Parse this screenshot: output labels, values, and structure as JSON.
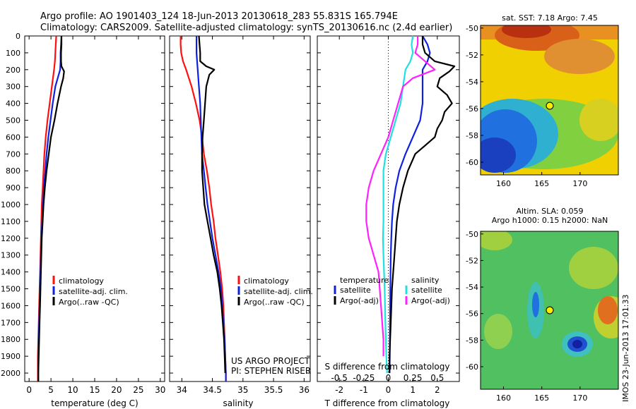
{
  "header": {
    "line1": "Argo profile: AO 1901403_124 18-Jun-2013 20130618_283 55.831S 165.794E",
    "line2": "Climatology: CARS2009. Satellite-adjusted climatology: synTS_20130616.nc (2.4d earlier)"
  },
  "colors": {
    "climatology": "#ff1010",
    "satellite": "#1020e0",
    "argo": "#000000",
    "sal_satellite": "#20e0e0",
    "sal_argo": "#ff20ff"
  },
  "chart_data": [
    {
      "type": "line",
      "xlabel": "temperature (deg C)",
      "ylabel": "",
      "xlim": [
        -1,
        31
      ],
      "ylim": [
        2050,
        0
      ],
      "xticks": [
        0,
        5,
        10,
        15,
        20,
        25,
        30
      ],
      "yticks": [
        0,
        100,
        200,
        300,
        400,
        500,
        600,
        700,
        800,
        900,
        1000,
        1100,
        1200,
        1300,
        1400,
        1500,
        1600,
        1700,
        1800,
        1900,
        2000
      ],
      "legend": [
        "climatology",
        "satellite-adj. clim.",
        "Argo(..raw -QC)"
      ],
      "legend_position": "lower-right",
      "series": [
        {
          "name": "climatology",
          "color_key": "climatology",
          "depth": [
            0,
            50,
            100,
            150,
            200,
            300,
            400,
            500,
            600,
            700,
            800,
            900,
            1000,
            1100,
            1200,
            1300,
            1400,
            1500,
            1600,
            1700,
            1800,
            1900,
            2000,
            2050
          ],
          "values": [
            6.2,
            6.1,
            6.0,
            5.9,
            5.7,
            5.2,
            4.7,
            4.2,
            3.8,
            3.5,
            3.3,
            3.1,
            2.9,
            2.8,
            2.7,
            2.6,
            2.5,
            2.4,
            2.3,
            2.2,
            2.1,
            2.0,
            2.0,
            2.0
          ]
        },
        {
          "name": "satellite-adj. clim.",
          "color_key": "satellite",
          "depth": [
            0,
            50,
            100,
            150,
            200,
            300,
            400,
            500,
            600,
            700,
            800,
            900,
            1000,
            1100,
            1200,
            1300,
            1400,
            1500,
            1600,
            1700,
            1800,
            1900,
            2000,
            2050
          ],
          "values": [
            7.4,
            7.3,
            7.2,
            7.2,
            7.1,
            6.0,
            5.4,
            4.9,
            4.4,
            4.0,
            3.7,
            3.4,
            3.2,
            3.0,
            2.8,
            2.7,
            2.6,
            2.5,
            2.4,
            2.3,
            2.2,
            2.1,
            2.1,
            2.1
          ]
        },
        {
          "name": "Argo(..raw -QC)",
          "color_key": "argo",
          "depth": [
            0,
            50,
            100,
            150,
            180,
            210,
            250,
            300,
            400,
            500,
            600,
            700,
            800,
            900,
            1000,
            1100,
            1200,
            1300,
            1400,
            1500,
            1600,
            1700,
            1800,
            1900,
            2000,
            2050
          ],
          "values": [
            7.4,
            7.4,
            7.3,
            7.3,
            7.4,
            8.0,
            7.8,
            7.3,
            6.5,
            5.8,
            5.0,
            4.5,
            4.0,
            3.6,
            3.3,
            3.1,
            2.9,
            2.8,
            2.7,
            2.6,
            2.5,
            2.4,
            2.3,
            2.2,
            2.1,
            2.1
          ]
        }
      ]
    },
    {
      "type": "line",
      "xlabel": "salinity",
      "ylabel": "",
      "xlim": [
        33.8,
        36.1
      ],
      "ylim": [
        2050,
        0
      ],
      "xticks": [
        34,
        34.5,
        35,
        35.5,
        36
      ],
      "legend": [
        "climatology",
        "satellite-adj. clim.",
        "Argo(..raw -QC)"
      ],
      "legend_position": "lower-right",
      "annotations": [
        "US ARGO PROJECT",
        "PI: STEPHEN RISER"
      ],
      "series": [
        {
          "name": "climatology",
          "color_key": "climatology",
          "depth": [
            0,
            50,
            100,
            150,
            200,
            300,
            400,
            500,
            600,
            700,
            800,
            900,
            1000,
            1100,
            1200,
            1300,
            1400,
            1500,
            1600,
            1700,
            1800,
            1900,
            2000,
            2050
          ],
          "values": [
            33.98,
            33.98,
            33.99,
            34.02,
            34.07,
            34.16,
            34.23,
            34.29,
            34.33,
            34.36,
            34.41,
            34.45,
            34.48,
            34.52,
            34.55,
            34.59,
            34.63,
            34.66,
            34.68,
            34.69,
            34.7,
            34.71,
            34.72,
            34.72
          ]
        },
        {
          "name": "satellite-adj. clim.",
          "color_key": "satellite",
          "depth": [
            0,
            50,
            100,
            150,
            200,
            300,
            400,
            500,
            600,
            700,
            800,
            900,
            1000,
            1100,
            1200,
            1300,
            1400,
            1500,
            1600,
            1700,
            1800,
            1900,
            2000,
            2050
          ],
          "values": [
            34.24,
            34.24,
            34.24,
            34.25,
            34.26,
            34.28,
            34.3,
            34.31,
            34.32,
            34.33,
            34.36,
            34.39,
            34.42,
            34.46,
            34.5,
            34.55,
            34.6,
            34.64,
            34.66,
            34.68,
            34.7,
            34.71,
            34.72,
            34.72
          ]
        },
        {
          "name": "Argo(..raw -QC)",
          "color_key": "argo",
          "depth": [
            0,
            50,
            100,
            150,
            180,
            200,
            230,
            300,
            400,
            500,
            600,
            700,
            800,
            900,
            1000,
            1100,
            1200,
            1300,
            1400,
            1500,
            1600,
            1700,
            1800,
            1900,
            2000
          ],
          "values": [
            34.28,
            34.29,
            34.3,
            34.3,
            34.4,
            34.53,
            34.45,
            34.4,
            34.38,
            34.36,
            34.34,
            34.33,
            34.33,
            34.35,
            34.37,
            34.42,
            34.47,
            34.52,
            34.58,
            34.62,
            34.65,
            34.67,
            34.69,
            34.7,
            34.71
          ]
        }
      ]
    },
    {
      "type": "line",
      "xlabel": "T difference from climatology",
      "x2label": "S difference from climatology",
      "ylabel": "",
      "xlim": [
        -2.9,
        2.9
      ],
      "ylim": [
        2050,
        0
      ],
      "xticks": [
        -2,
        -1,
        0,
        1,
        2
      ],
      "x2ticks": [
        "-0.5",
        "-0.25",
        "0",
        "0.25",
        "0.5"
      ],
      "x2ticks_pos": [
        -2,
        -1,
        0,
        1,
        2
      ],
      "legend_groups": [
        {
          "title": "temperature",
          "items": [
            "satellite",
            "Argo(-adj)"
          ]
        },
        {
          "title": "salinity",
          "items": [
            "satellite",
            "Argo(-adj)"
          ]
        }
      ],
      "series": [
        {
          "name": "satellite",
          "color_key": "satellite",
          "depth": [
            0,
            50,
            100,
            150,
            200,
            300,
            400,
            500,
            600,
            700,
            800,
            900,
            1000,
            1100,
            1200,
            1300,
            1500,
            1700,
            1900,
            2000
          ],
          "values": [
            1.4,
            1.6,
            1.7,
            1.6,
            1.4,
            1.4,
            1.4,
            1.3,
            1.0,
            0.7,
            0.45,
            0.3,
            0.2,
            0.15,
            0.12,
            0.1,
            0.08,
            0.07,
            0.06,
            0.05
          ]
        },
        {
          "name": "Argo(-adj)",
          "color_key": "argo",
          "depth": [
            0,
            50,
            100,
            150,
            180,
            210,
            250,
            300,
            350,
            400,
            450,
            500,
            550,
            600,
            650,
            700,
            800,
            900,
            1000,
            1100,
            1200,
            1300,
            1500,
            1700,
            1900,
            2000
          ],
          "values": [
            1.4,
            1.4,
            1.5,
            1.9,
            2.7,
            2.5,
            2.1,
            2.0,
            2.4,
            2.6,
            2.3,
            2.2,
            2.0,
            1.9,
            1.5,
            1.1,
            0.8,
            0.6,
            0.45,
            0.35,
            0.3,
            0.25,
            0.15,
            0.1,
            0.05,
            0.05
          ]
        },
        {
          "name": "salinity satellite",
          "color_key": "sal_satellite",
          "depth": [
            0,
            50,
            100,
            150,
            200,
            300,
            400,
            500,
            600,
            700,
            800,
            900,
            1000,
            1100,
            1200,
            1300,
            1500,
            1700,
            1900,
            2000
          ],
          "values": [
            1.0,
            0.95,
            1.0,
            0.9,
            0.7,
            0.6,
            0.5,
            0.3,
            0.1,
            -0.1,
            -0.2,
            -0.2,
            -0.2,
            -0.2,
            -0.22,
            -0.2,
            -0.15,
            -0.12,
            -0.08,
            -0.05
          ]
        },
        {
          "name": "salinity Argo(-adj)",
          "color_key": "sal_argo",
          "depth": [
            0,
            50,
            100,
            150,
            200,
            250,
            300,
            400,
            500,
            600,
            700,
            800,
            900,
            1000,
            1100,
            1200,
            1300,
            1400,
            1600,
            1800,
            1900
          ],
          "values": [
            1.2,
            1.2,
            1.1,
            1.5,
            1.9,
            1.0,
            0.6,
            0.4,
            0.2,
            0.0,
            -0.3,
            -0.6,
            -0.8,
            -0.9,
            -0.9,
            -0.8,
            -0.6,
            -0.4,
            -0.3,
            -0.2,
            -0.2
          ]
        }
      ]
    },
    {
      "type": "heatmap",
      "title": "sat. SST: 7.18 Argo: 7.45",
      "xlim": [
        157,
        175
      ],
      "ylim": [
        -62,
        -49.8
      ],
      "xticks": [
        160,
        165,
        170
      ],
      "yticks": [
        -50,
        -52,
        -54,
        -56,
        -58,
        -60
      ],
      "marker": {
        "lon": 165.794,
        "lat": -55.831
      }
    },
    {
      "type": "heatmap",
      "title": "Altim. SLA: 0.059",
      "subtitle": "Argo h1000: 0.15 h2000: NaN",
      "xlim": [
        157,
        175
      ],
      "ylim": [
        -62,
        -49.8
      ],
      "xticks": [
        160,
        165,
        170
      ],
      "yticks": [
        -50,
        -52,
        -54,
        -56,
        -58,
        -60
      ],
      "marker": {
        "lon": 165.794,
        "lat": -55.831
      }
    }
  ],
  "footer": {
    "stamp": "IMOS 23-Jun-2013 17:01:33"
  }
}
